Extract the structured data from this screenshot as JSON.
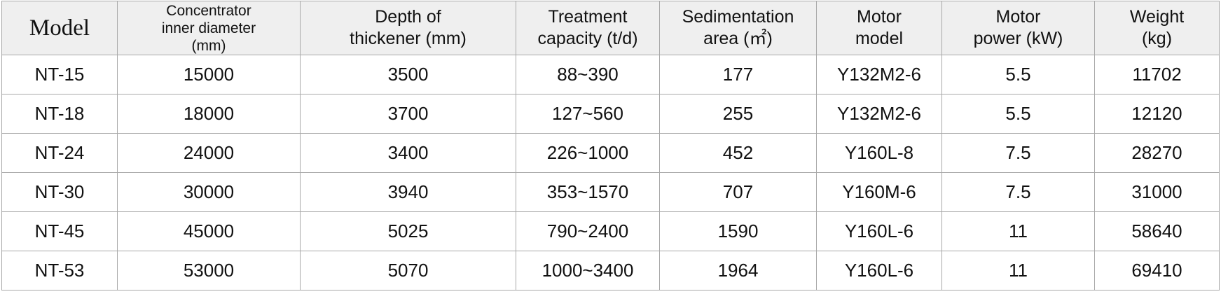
{
  "table": {
    "headers": [
      [
        "Model"
      ],
      [
        "Concentrator",
        "inner diameter",
        "(mm)"
      ],
      [
        "Depth of",
        "thickener (mm)"
      ],
      [
        "Treatment",
        "capacity (t/d)"
      ],
      [
        "Sedimentation",
        "area (㎡)"
      ],
      [
        "Motor",
        "model"
      ],
      [
        "Motor",
        "power (kW)"
      ],
      [
        "Weight",
        "(kg)"
      ]
    ],
    "rows": [
      [
        "NT-15",
        "15000",
        "3500",
        "88~390",
        "177",
        "Y132M2-6",
        "5.5",
        "11702"
      ],
      [
        "NT-18",
        "18000",
        "3700",
        "127~560",
        "255",
        "Y132M2-6",
        "5.5",
        "12120"
      ],
      [
        "NT-24",
        "24000",
        "3400",
        "226~1000",
        "452",
        "Y160L-8",
        "7.5",
        "28270"
      ],
      [
        "NT-30",
        "30000",
        "3940",
        "353~1570",
        "707",
        "Y160M-6",
        "7.5",
        "31000"
      ],
      [
        "NT-45",
        "45000",
        "5025",
        "790~2400",
        "1590",
        "Y160L-6",
        "11",
        "58640"
      ],
      [
        "NT-53",
        "53000",
        "5070",
        "1000~3400",
        "1964",
        "Y160L-6",
        "11",
        "69410"
      ]
    ]
  }
}
